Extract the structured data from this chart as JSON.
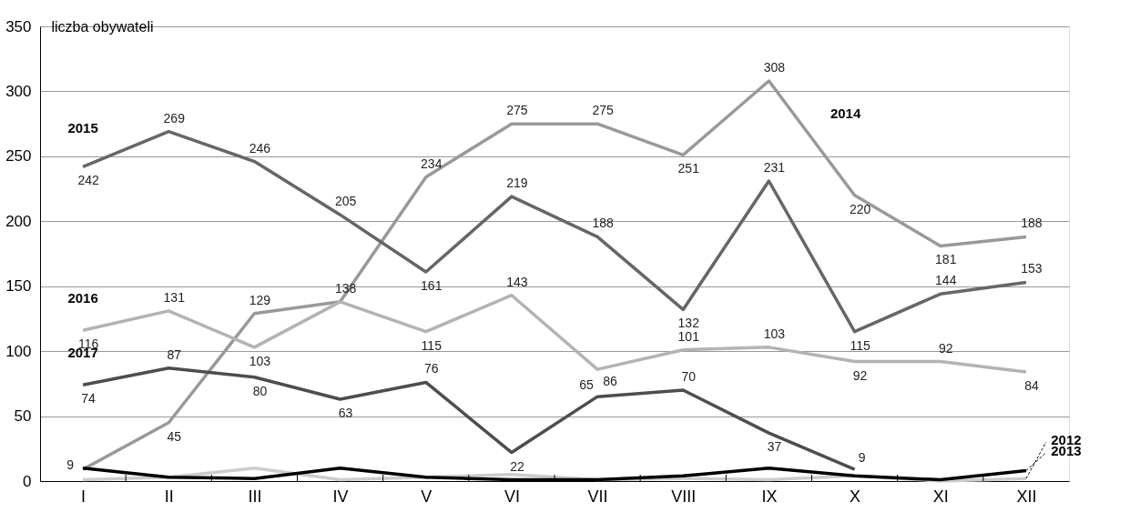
{
  "chart_data": {
    "type": "line",
    "ylabel": "liczba obywateli",
    "categories": [
      "I",
      "II",
      "III",
      "IV",
      "V",
      "VI",
      "VII",
      "VIII",
      "IX",
      "X",
      "XI",
      "XII"
    ],
    "ylim": [
      0,
      350
    ],
    "yticks": [
      0,
      50,
      100,
      150,
      200,
      250,
      300,
      350
    ],
    "grid": "y",
    "legend": false,
    "marker": "none",
    "line_style": "solid",
    "series": [
      {
        "name": "2014",
        "color": "#999999",
        "values": [
          9,
          45,
          129,
          138,
          234,
          275,
          275,
          251,
          308,
          220,
          181,
          188
        ],
        "value_labels": [
          "9",
          "45",
          "129",
          null,
          "234",
          "275",
          "275",
          "251",
          "308",
          "220",
          "181",
          "188"
        ]
      },
      {
        "name": "2015",
        "color": "#666666",
        "values": [
          242,
          269,
          246,
          205,
          161,
          219,
          188,
          132,
          231,
          115,
          144,
          153
        ],
        "value_labels": [
          "242",
          "269",
          "246",
          "205",
          "161",
          "219",
          "188",
          "132",
          "231",
          "115",
          "144",
          "153"
        ]
      },
      {
        "name": "2016",
        "color": "#b3b3b3",
        "values": [
          116,
          131,
          103,
          138,
          115,
          143,
          86,
          101,
          103,
          92,
          92,
          84
        ],
        "value_labels": [
          "116",
          "131",
          "103",
          "138",
          "115",
          "143",
          "86",
          "101",
          "103",
          "92",
          "92",
          "84"
        ]
      },
      {
        "name": "2017",
        "color": "#4d4d4d",
        "values": [
          74,
          87,
          80,
          63,
          76,
          22,
          65,
          70,
          37,
          9,
          null,
          null
        ],
        "value_labels": [
          "74",
          "87",
          "80",
          "63",
          "76",
          "22",
          "65",
          "70",
          "37",
          "9",
          null,
          null
        ]
      },
      {
        "name": "2012",
        "color": "#cccccc",
        "values": [
          1,
          3,
          10,
          1,
          3,
          5,
          1,
          2,
          1,
          4,
          0,
          2
        ]
      },
      {
        "name": "2013",
        "color": "#000000",
        "values": [
          10,
          3,
          2,
          10,
          3,
          1,
          1,
          4,
          10,
          4,
          1,
          8
        ]
      }
    ]
  }
}
